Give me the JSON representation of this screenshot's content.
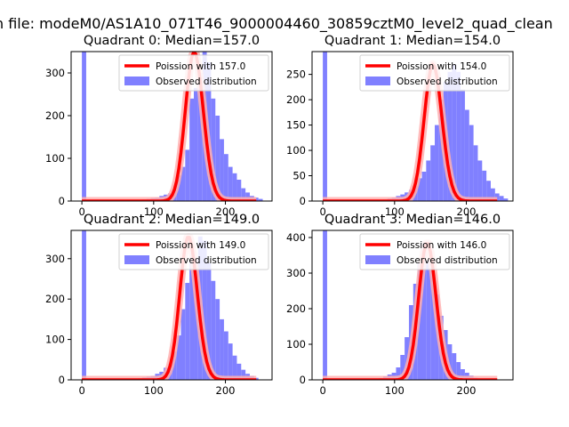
{
  "figure": {
    "suptitle": "n file: modeM0/AS1A10_071T46_9000004460_30859cztM0_level2_quad_clean"
  },
  "colors": {
    "hist": "#8080ff",
    "poisson": "#ff0000",
    "poisson_glow": "#ffb0b0",
    "axes": "#000000",
    "background": "#ffffff"
  },
  "chart_data": [
    {
      "type": "bar",
      "panel": "top-left",
      "title": "Quadrant 0: Median=157.0",
      "xlabel": "",
      "ylabel": "",
      "xlim": [
        -15,
        265
      ],
      "ylim": [
        0,
        350
      ],
      "xticks": [
        0,
        100,
        200
      ],
      "yticks": [
        0,
        100,
        200,
        300
      ],
      "legend_position": "top-right",
      "median": 157.0,
      "poisson_label": "Poission with 157.0",
      "hist_label": "Observed distribution",
      "bin_width": 6,
      "bin_edges_start": 0,
      "hist_values": [
        350,
        0,
        0,
        0,
        0,
        0,
        0,
        0,
        0,
        0,
        0,
        0,
        2,
        3,
        4,
        5,
        7,
        8,
        12,
        15,
        18,
        25,
        60,
        80,
        120,
        240,
        265,
        300,
        350,
        325,
        240,
        200,
        145,
        110,
        80,
        65,
        50,
        30,
        20,
        12,
        8,
        5
      ]
    },
    {
      "type": "bar",
      "panel": "top-right",
      "title": "Quadrant 1: Median=154.0",
      "xlabel": "",
      "ylabel": "",
      "xlim": [
        -15,
        265
      ],
      "ylim": [
        0,
        295
      ],
      "xticks": [
        0,
        100,
        200
      ],
      "yticks": [
        0,
        50,
        100,
        150,
        200,
        250
      ],
      "legend_position": "top-right",
      "median": 154.0,
      "poisson_label": "Poission with 154.0",
      "hist_label": "Observed distribution",
      "bin_width": 6,
      "bin_edges_start": 0,
      "hist_values": [
        295,
        0,
        0,
        0,
        0,
        0,
        0,
        0,
        0,
        0,
        0,
        0,
        1,
        2,
        3,
        5,
        7,
        10,
        13,
        17,
        22,
        30,
        45,
        58,
        80,
        110,
        150,
        200,
        235,
        255,
        270,
        255,
        220,
        180,
        150,
        110,
        80,
        60,
        40,
        25,
        15,
        10,
        5
      ]
    },
    {
      "type": "bar",
      "panel": "bottom-left",
      "title": "Quadrant 2: Median=149.0",
      "xlabel": "",
      "ylabel": "",
      "xlim": [
        -15,
        265
      ],
      "ylim": [
        0,
        370
      ],
      "xticks": [
        0,
        100,
        200
      ],
      "yticks": [
        0,
        100,
        200,
        300
      ],
      "legend_position": "top-right",
      "median": 149.0,
      "poisson_label": "Poission with 149.0",
      "hist_label": "Observed distribution",
      "bin_width": 6,
      "bin_edges_start": 0,
      "hist_values": [
        370,
        0,
        0,
        0,
        0,
        0,
        0,
        0,
        0,
        0,
        0,
        0,
        0,
        4,
        6,
        8,
        10,
        15,
        20,
        30,
        40,
        70,
        110,
        175,
        240,
        305,
        300,
        355,
        345,
        290,
        245,
        200,
        150,
        120,
        90,
        60,
        40,
        25,
        15,
        10,
        5
      ]
    },
    {
      "type": "bar",
      "panel": "bottom-right",
      "title": "Quadrant 3: Median=146.0",
      "xlabel": "",
      "ylabel": "",
      "xlim": [
        -15,
        265
      ],
      "ylim": [
        0,
        420
      ],
      "xticks": [
        0,
        100,
        200
      ],
      "yticks": [
        0,
        100,
        200,
        300,
        400
      ],
      "legend_position": "top-right",
      "median": 146.0,
      "poisson_label": "Poission with 146.0",
      "hist_label": "Observed distribution",
      "bin_width": 6,
      "bin_edges_start": 0,
      "hist_values": [
        420,
        0,
        0,
        0,
        0,
        0,
        0,
        0,
        0,
        0,
        0,
        0,
        0,
        5,
        10,
        15,
        20,
        35,
        70,
        120,
        210,
        270,
        330,
        385,
        335,
        310,
        240,
        180,
        140,
        100,
        75,
        50,
        30,
        20,
        12,
        6,
        3
      ]
    }
  ]
}
